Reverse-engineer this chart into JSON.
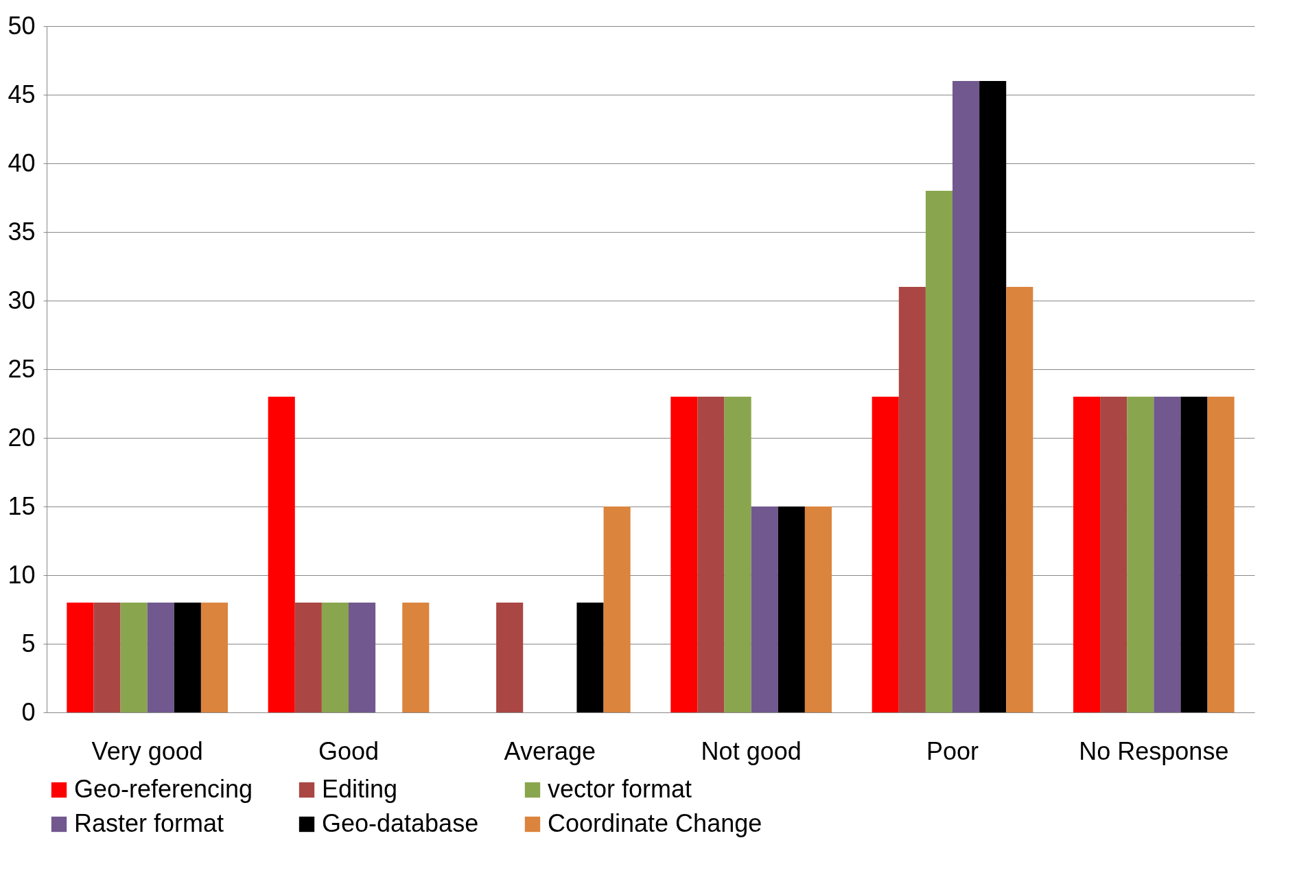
{
  "chart_data": {
    "type": "bar",
    "categories": [
      "Very good",
      "Good",
      "Average",
      "Not good",
      "Poor",
      "No Response"
    ],
    "series": [
      {
        "name": "Geo-referencing",
        "color": "#ff0000",
        "values": [
          8,
          23,
          0,
          23,
          23,
          23
        ]
      },
      {
        "name": "Editing",
        "color": "#aa4643",
        "values": [
          8,
          8,
          8,
          23,
          31,
          23
        ]
      },
      {
        "name": "vector format",
        "color": "#89a54e",
        "values": [
          8,
          8,
          0,
          23,
          38,
          23
        ]
      },
      {
        "name": "Raster format",
        "color": "#71588f",
        "values": [
          8,
          8,
          0,
          15,
          46,
          23
        ]
      },
      {
        "name": "Geo-database",
        "color": "#000000",
        "values": [
          8,
          0,
          8,
          15,
          46,
          23
        ]
      },
      {
        "name": "Coordinate Change",
        "color": "#db843d",
        "values": [
          8,
          8,
          15,
          15,
          31,
          23
        ]
      }
    ],
    "ylim": [
      0,
      50
    ],
    "yticks": [
      0,
      5,
      10,
      15,
      20,
      25,
      30,
      35,
      40,
      45,
      50
    ],
    "grid": "y",
    "legend": "bottom"
  }
}
